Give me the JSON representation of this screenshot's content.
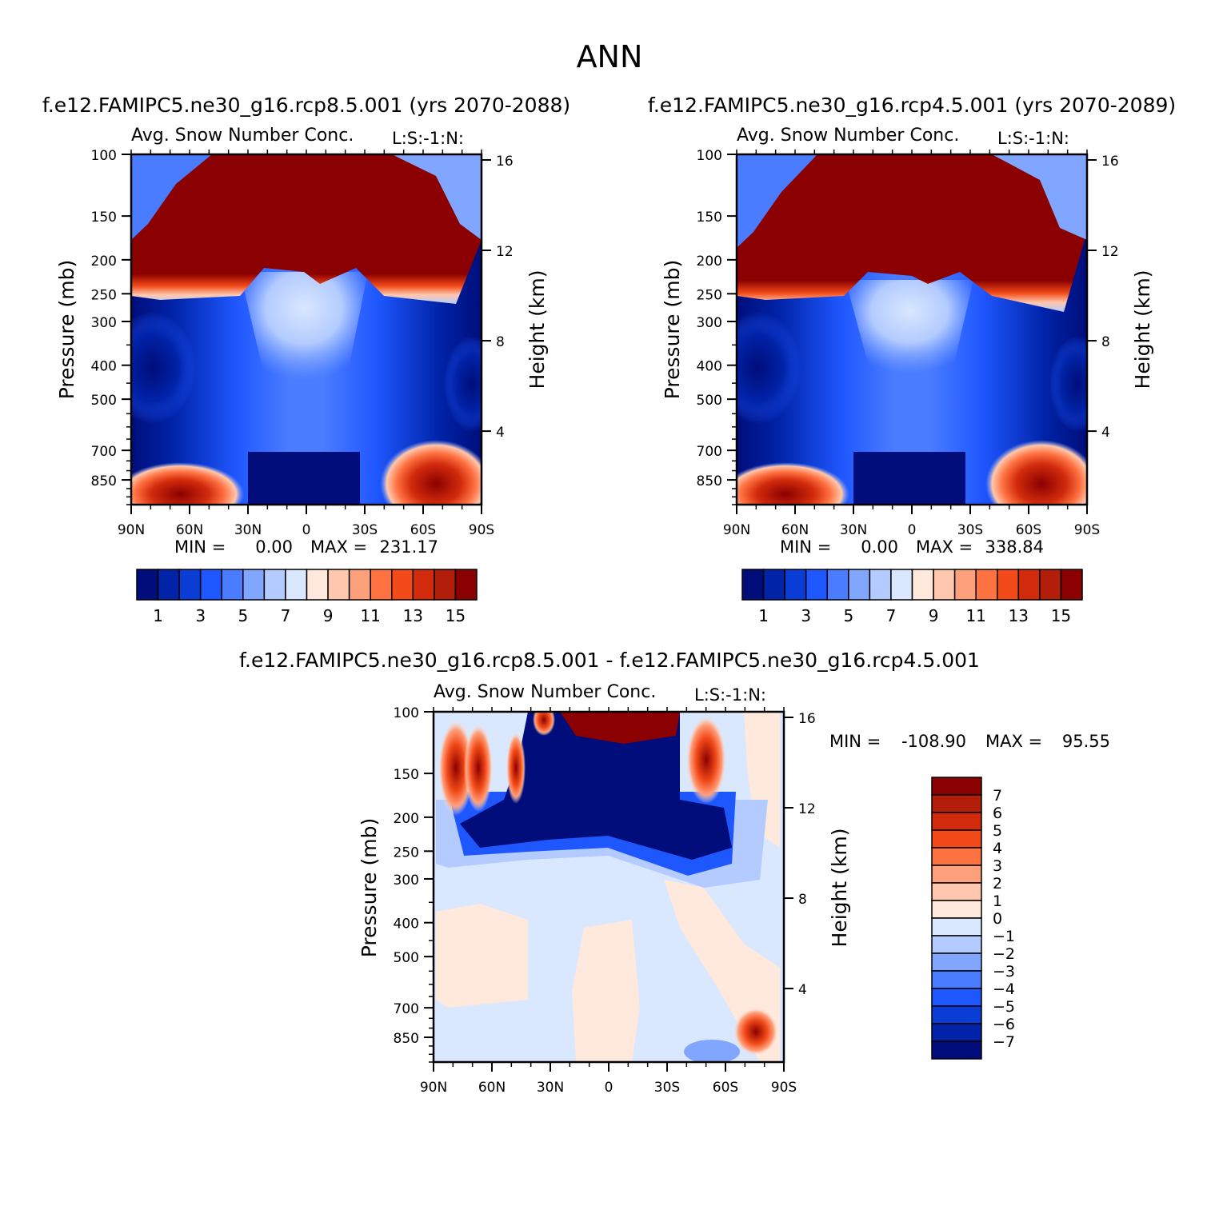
{
  "page_title": "ANN",
  "chart_data": [
    {
      "type": "heatmap",
      "title": "f.e12.FAMIPC5.ne30_g16.rcp8.5.001 (yrs 2070-2088)",
      "subtitle": "Avg. Snow Number Conc.",
      "units_label": "L:S:-1:N:",
      "xlabel": "",
      "ylabel": "Pressure (mb)",
      "ylabel_right": "Height (km)",
      "x_ticks": [
        "90N",
        "60N",
        "30N",
        "0",
        "30S",
        "60S",
        "90S"
      ],
      "y_ticks": [
        "100",
        "150",
        "200",
        "250",
        "300",
        "400",
        "500",
        "700",
        "850"
      ],
      "y_ticks_right": [
        "16",
        "12",
        "8",
        "4"
      ],
      "stats": {
        "min_label": "MIN =",
        "min": "0.00",
        "max_label": "MAX =",
        "max": "231.17"
      },
      "colorbar": {
        "orientation": "horizontal",
        "labels": [
          "1",
          "3",
          "5",
          "7",
          "9",
          "11",
          "13",
          "15"
        ],
        "colors": [
          "#000d7a",
          "#0023a8",
          "#0a3cd6",
          "#1f57ff",
          "#4a7cff",
          "#80a6ff",
          "#b3cbff",
          "#d9e7ff",
          "#ffe9dc",
          "#ffc7ad",
          "#ffa07c",
          "#ff7242",
          "#f24a18",
          "#d22b0c",
          "#b31e0a",
          "#8b0000"
        ]
      }
    },
    {
      "type": "heatmap",
      "title": "f.e12.FAMIPC5.ne30_g16.rcp4.5.001 (yrs 2070-2089)",
      "subtitle": "Avg. Snow Number Conc.",
      "units_label": "L:S:-1:N:",
      "xlabel": "",
      "ylabel": "Pressure (mb)",
      "ylabel_right": "Height (km)",
      "x_ticks": [
        "90N",
        "60N",
        "30N",
        "0",
        "30S",
        "60S",
        "90S"
      ],
      "y_ticks": [
        "100",
        "150",
        "200",
        "250",
        "300",
        "400",
        "500",
        "700",
        "850"
      ],
      "y_ticks_right": [
        "16",
        "12",
        "8",
        "4"
      ],
      "stats": {
        "min_label": "MIN =",
        "min": "0.00",
        "max_label": "MAX =",
        "max": "338.84"
      },
      "colorbar": {
        "orientation": "horizontal",
        "labels": [
          "1",
          "3",
          "5",
          "7",
          "9",
          "11",
          "13",
          "15"
        ],
        "colors": [
          "#000d7a",
          "#0023a8",
          "#0a3cd6",
          "#1f57ff",
          "#4a7cff",
          "#80a6ff",
          "#b3cbff",
          "#d9e7ff",
          "#ffe9dc",
          "#ffc7ad",
          "#ffa07c",
          "#ff7242",
          "#f24a18",
          "#d22b0c",
          "#b31e0a",
          "#8b0000"
        ]
      }
    },
    {
      "type": "heatmap",
      "title": "f.e12.FAMIPC5.ne30_g16.rcp8.5.001 - f.e12.FAMIPC5.ne30_g16.rcp4.5.001",
      "subtitle": "Avg. Snow Number Conc.",
      "units_label": "L:S:-1:N:",
      "xlabel": "",
      "ylabel": "Pressure (mb)",
      "ylabel_right": "Height (km)",
      "x_ticks": [
        "90N",
        "60N",
        "30N",
        "0",
        "30S",
        "60S",
        "90S"
      ],
      "y_ticks": [
        "100",
        "150",
        "200",
        "250",
        "300",
        "400",
        "500",
        "700",
        "850"
      ],
      "y_ticks_right": [
        "16",
        "12",
        "8",
        "4"
      ],
      "stats": {
        "min_label": "MIN =",
        "min": "-108.90",
        "max_label": "MAX =",
        "max": "95.55"
      },
      "colorbar": {
        "orientation": "vertical",
        "labels": [
          "7",
          "6",
          "5",
          "4",
          "3",
          "2",
          "1",
          "0",
          "-1",
          "-2",
          "-3",
          "-4",
          "-5",
          "-6",
          "-7"
        ],
        "colors": [
          "#8b0000",
          "#b31e0a",
          "#d22b0c",
          "#f24a18",
          "#ff7242",
          "#ffa07c",
          "#ffc7ad",
          "#ffe9dc",
          "#d9e7ff",
          "#b3cbff",
          "#80a6ff",
          "#4a7cff",
          "#1f57ff",
          "#0a3cd6",
          "#0023a8",
          "#000d7a"
        ]
      }
    }
  ]
}
